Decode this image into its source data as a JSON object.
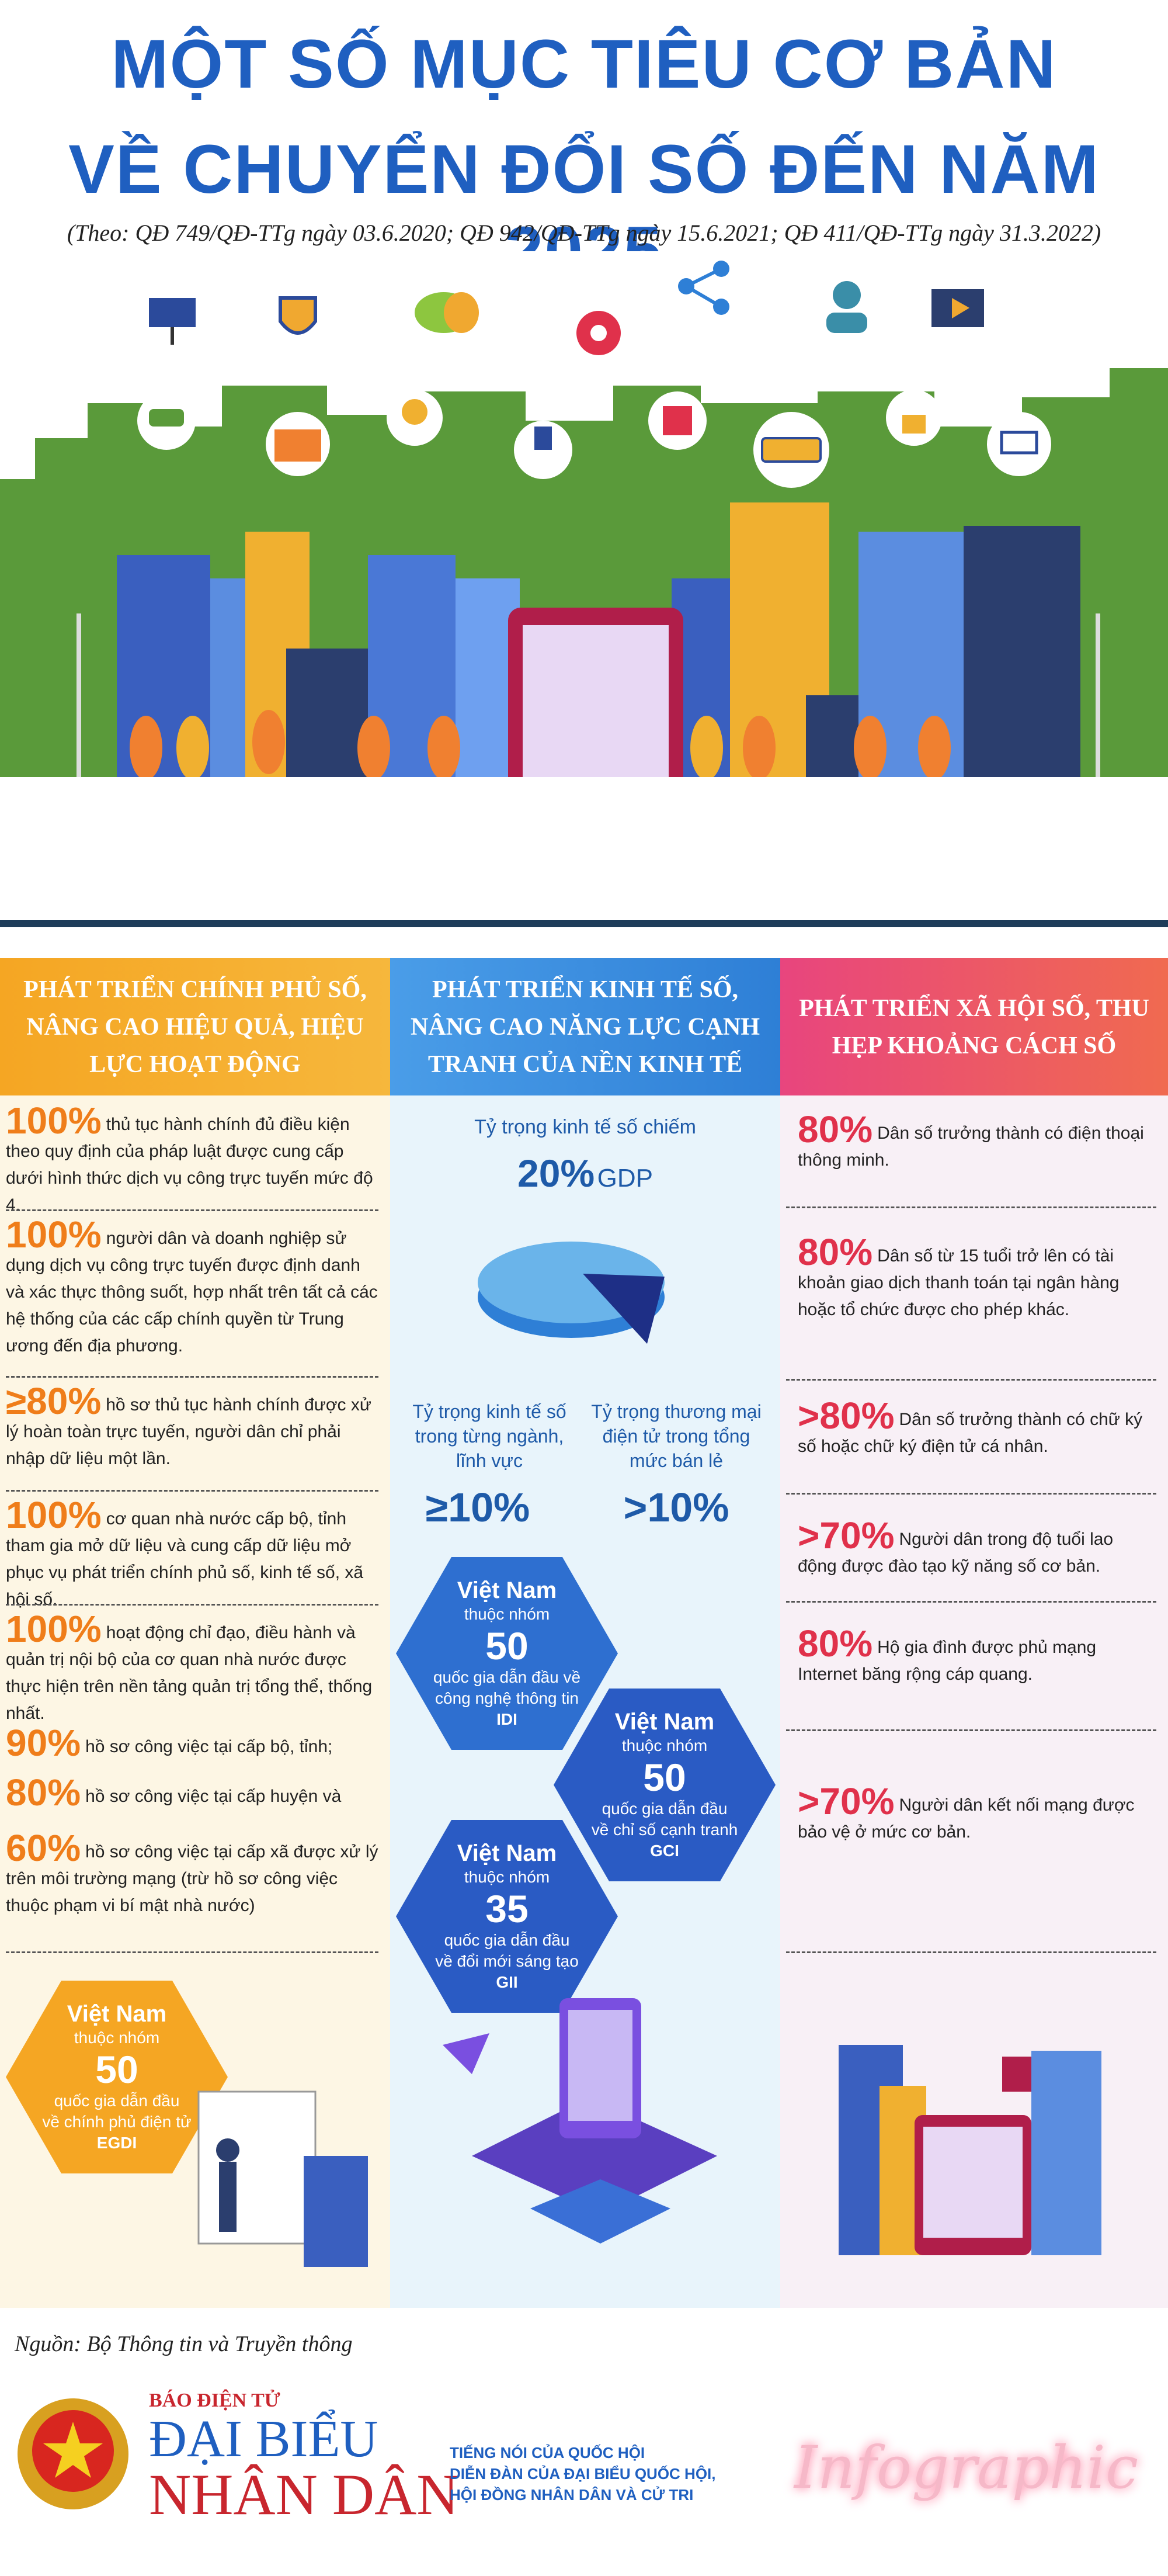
{
  "title": {
    "line1": "MỘT SỐ MỤC TIÊU CƠ BẢN",
    "line2": "VỀ CHUYỂN ĐỔI SỐ ĐẾN NĂM 2025"
  },
  "subtitle": "(Theo: QĐ 749/QĐ-TTg ngày 03.6.2020; QĐ 942/QĐ-TTg ngày 15.6.2021;  QĐ 411/QĐ-TTg ngày 31.3.2022)",
  "columns": {
    "government": {
      "header": "PHÁT TRIỂN CHÍNH PHỦ SỐ, NÂNG CAO HIỆU QUẢ, HIỆU LỰC HOẠT ĐỘNG",
      "items": [
        {
          "pct": "100%",
          "text": "thủ tục hành chính đủ điều kiện theo quy định của pháp luật được cung cấp dưới hình thức dịch vụ công trực tuyến mức độ 4."
        },
        {
          "pct": "100%",
          "text": "người dân và doanh nghiệp sử dụng dịch vụ công trực tuyến được định danh và xác thực thông suốt, hợp nhất trên tất cả các hệ thống của các cấp chính quyền từ Trung ương đến địa phương."
        },
        {
          "pct": "≥80%",
          "text": "hồ sơ thủ tục hành chính được xử lý hoàn toàn trực tuyến, người dân chỉ phải nhập dữ liệu một lần."
        },
        {
          "pct": "100%",
          "text": "cơ quan nhà nước cấp bộ, tỉnh tham gia mở dữ liệu và cung cấp dữ liệu mở phục vụ phát triển chính phủ số, kinh tế số, xã hội số."
        },
        {
          "pct": "100%",
          "text": "hoạt động chỉ đạo, điều hành và quản trị nội bộ của cơ quan nhà nước được thực hiện trên nền tảng quản trị tổng thể, thống nhất."
        },
        {
          "pct": "90%",
          "text": "hồ sơ công việc tại cấp bộ, tỉnh;"
        },
        {
          "pct": "80%",
          "text": "hồ sơ công việc tại cấp huyện và"
        },
        {
          "pct": "60%",
          "text": "hồ sơ công việc tại cấp xã được xử lý trên môi trường mạng (trừ hồ sơ công việc thuộc phạm vi bí mật nhà nước)"
        }
      ],
      "hex": {
        "vn": "Việt Nam",
        "l1": "thuộc nhóm",
        "num": "50",
        "l2": "quốc gia dẫn đầu",
        "l3": "về chính phủ điện tử",
        "l4": "EGDI"
      }
    },
    "economy": {
      "header": "PHÁT TRIỂN KINH TẾ SỐ, NÂNG CAO NĂNG LỰC CẠNH TRANH CỦA NỀN KINH TẾ",
      "share_label": "Tỷ trọng kinh tế số chiếm",
      "share_value": "20%",
      "share_unit": "GDP",
      "stat1": {
        "label": "Tỷ trọng kinh tế số trong từng ngành, lĩnh vực",
        "value": "≥10%"
      },
      "stat2": {
        "label": "Tỷ trọng thương mại điện tử trong tổng mức bán lẻ",
        "value": ">10%"
      },
      "hexes": [
        {
          "vn": "Việt Nam",
          "l1": "thuộc nhóm",
          "num": "50",
          "l2": "quốc gia dẫn đầu về",
          "l3": "công nghệ thông tin",
          "l4": "IDI"
        },
        {
          "vn": "Việt Nam",
          "l1": "thuộc nhóm",
          "num": "50",
          "l2": "quốc gia dẫn đầu",
          "l3": "về chỉ số cạnh tranh",
          "l4": "GCI"
        },
        {
          "vn": "Việt Nam",
          "l1": "thuộc nhóm",
          "num": "35",
          "l2": "quốc gia dẫn đầu",
          "l3": "về đổi mới sáng tạo",
          "l4": "GII"
        }
      ]
    },
    "society": {
      "header": "PHÁT TRIỂN XÃ HỘI SỐ, THU HẸP KHOẢNG CÁCH SỐ",
      "items": [
        {
          "pct": "80%",
          "text": "Dân số trưởng thành có điện thoại thông minh."
        },
        {
          "pct": "80%",
          "text": "Dân số từ 15 tuổi trở lên có tài khoản giao dịch thanh toán tại ngân hàng hoặc tổ chức được cho phép khác."
        },
        {
          "pct": ">80%",
          "text": "Dân số trưởng thành có chữ ký số hoặc chữ ký điện tử cá nhân."
        },
        {
          "pct": ">70%",
          "text": "Người dân trong độ tuổi lao động được đào tạo kỹ năng số cơ bản."
        },
        {
          "pct": "80%",
          "text": "Hộ gia đình được phủ mạng Internet băng rộng cáp quang."
        },
        {
          "pct": ">70%",
          "text": "Người dân kết nối mạng được bảo vệ ở mức cơ bản."
        }
      ]
    }
  },
  "footer": {
    "source": "Nguồn: Bộ Thông tin và Truyền thông",
    "brand_small": "BÁO ĐIỆN TỬ",
    "brand_line1": "ĐẠI BIỂU",
    "brand_line2": "NHÂN DÂN",
    "tagline1": "TIẾNG NÓI CỦA QUỐC HỘI",
    "tagline2": "DIỄN ĐÀN CỦA ĐẠI BIỂU QUỐC HỘI,",
    "tagline3": "HỘI ĐỒNG NHÂN DÂN VÀ CỬ TRI",
    "badge": "Infographic"
  },
  "colors": {
    "blue": "#1f5fc0",
    "orange": "#ef7d1a",
    "red": "#e0314b",
    "green": "#5a9a3a"
  }
}
